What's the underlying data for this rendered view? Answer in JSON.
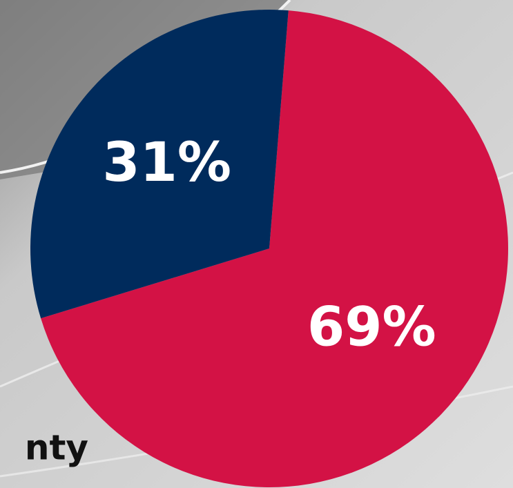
{
  "chart_data": {
    "type": "pie",
    "values": [
      69,
      31
    ],
    "value_labels": [
      "69%",
      "31%"
    ],
    "colors": [
      "#d31245",
      "#002b5c"
    ],
    "annotation": "nty"
  }
}
